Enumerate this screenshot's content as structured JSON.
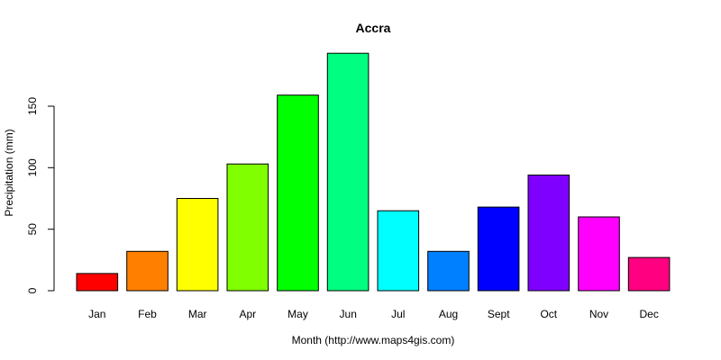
{
  "chart_data": {
    "type": "bar",
    "title": "Accra",
    "xlabel": "Month (http://www.maps4gis.com)",
    "ylabel": "Precipitation (mm)",
    "categories": [
      "Jan",
      "Feb",
      "Mar",
      "Apr",
      "May",
      "Jun",
      "Jul",
      "Aug",
      "Sept",
      "Oct",
      "Nov",
      "Dec"
    ],
    "values": [
      14,
      32,
      75,
      103,
      159,
      193,
      65,
      32,
      68,
      94,
      60,
      27
    ],
    "colors": [
      "#FF0000",
      "#FF8000",
      "#FFFF00",
      "#80FF00",
      "#00FF00",
      "#00FF80",
      "#00FFFF",
      "#0080FF",
      "#0000FF",
      "#8000FF",
      "#FF00FF",
      "#FF0080"
    ],
    "ylim": [
      0,
      200
    ],
    "yticks": [
      0,
      50,
      100,
      150
    ],
    "grid": false,
    "legend": "none"
  }
}
